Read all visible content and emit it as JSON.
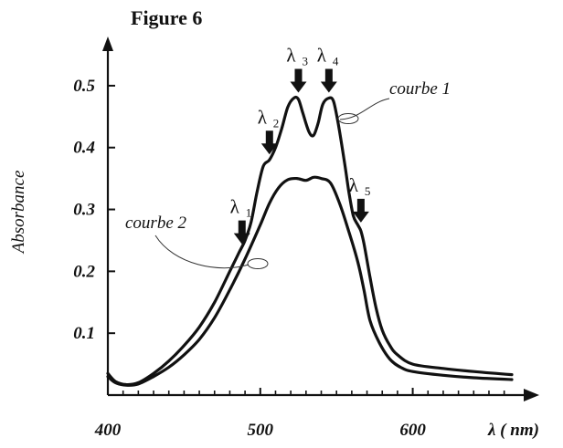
{
  "chart_data": {
    "type": "line",
    "title": "Figure 6",
    "ylabel": "Absorbance",
    "xlabel": "λ ( nm)",
    "xlim": [
      400,
      665
    ],
    "ylim": [
      0,
      0.55
    ],
    "x_ticks": [
      {
        "value": 400,
        "label": "400"
      },
      {
        "value": 500,
        "label": "500"
      },
      {
        "value": 600,
        "label": "600"
      }
    ],
    "y_ticks": [
      {
        "value": 0.1,
        "label": "0.1"
      },
      {
        "value": 0.2,
        "label": "0.2"
      },
      {
        "value": 0.3,
        "label": "0.3"
      },
      {
        "value": 0.4,
        "label": "0.4"
      },
      {
        "value": 0.5,
        "label": "0.5"
      }
    ],
    "grid": false,
    "series": [
      {
        "name": "courbe 1",
        "x": [
          400,
          405,
          412,
          420,
          430,
          440,
          450,
          460,
          470,
          480,
          486,
          490,
          494,
          498,
          502,
          506,
          510,
          514,
          518,
          522,
          525,
          528,
          532,
          535,
          538,
          541,
          545,
          548,
          551,
          555,
          558,
          561,
          564,
          566,
          568,
          572,
          576,
          580,
          585,
          590,
          600,
          620,
          640,
          665
        ],
        "y": [
          0.035,
          0.022,
          0.017,
          0.02,
          0.035,
          0.055,
          0.08,
          0.11,
          0.15,
          0.2,
          0.23,
          0.25,
          0.28,
          0.33,
          0.37,
          0.38,
          0.4,
          0.43,
          0.465,
          0.48,
          0.478,
          0.455,
          0.425,
          0.42,
          0.44,
          0.47,
          0.48,
          0.475,
          0.44,
          0.38,
          0.33,
          0.29,
          0.275,
          0.265,
          0.245,
          0.19,
          0.14,
          0.105,
          0.08,
          0.065,
          0.05,
          0.043,
          0.038,
          0.033
        ]
      },
      {
        "name": "courbe 2",
        "x": [
          400,
          405,
          412,
          420,
          430,
          440,
          450,
          460,
          470,
          480,
          490,
          500,
          506,
          512,
          518,
          524,
          530,
          535,
          540,
          546,
          552,
          558,
          564,
          568,
          572,
          578,
          585,
          592,
          600,
          620,
          640,
          665
        ],
        "y": [
          0.03,
          0.02,
          0.016,
          0.018,
          0.03,
          0.045,
          0.065,
          0.09,
          0.125,
          0.17,
          0.22,
          0.275,
          0.31,
          0.335,
          0.348,
          0.35,
          0.347,
          0.352,
          0.35,
          0.343,
          0.31,
          0.265,
          0.215,
          0.17,
          0.12,
          0.085,
          0.058,
          0.045,
          0.038,
          0.032,
          0.028,
          0.025
        ]
      }
    ],
    "annotations": [
      {
        "text": "λ",
        "sub": "1",
        "x": 488,
        "y": 0.235
      },
      {
        "text": "λ",
        "sub": "2",
        "x": 506,
        "y": 0.38
      },
      {
        "text": "λ",
        "sub": "3",
        "x": 525,
        "y": 0.48
      },
      {
        "text": "λ",
        "sub": "4",
        "x": 545,
        "y": 0.48
      },
      {
        "text": "λ",
        "sub": "5",
        "x": 566,
        "y": 0.27
      }
    ]
  }
}
